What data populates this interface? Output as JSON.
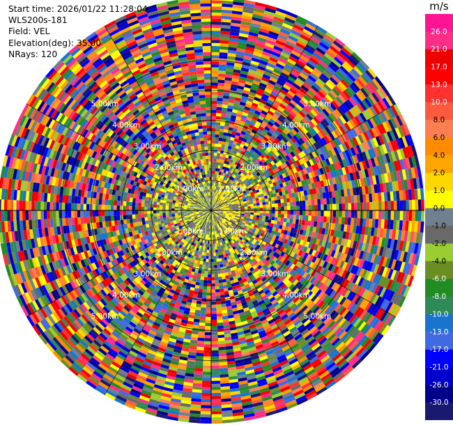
{
  "header": {
    "start_time": "Start time: 2026/01/22 11:28:04",
    "station": "WLS200s-181",
    "field": "Field: VEL",
    "elevation": "Elevation(deg): 35.00",
    "nrays": "NRays: 120"
  },
  "colorbar": {
    "unit": "m/s",
    "ticks": [
      "26.0",
      "21.0",
      "17.0",
      "13.0",
      "10.0",
      "8.0",
      "6.0",
      "4.0",
      "2.0",
      "1.0",
      "0.0",
      "-1.0",
      "-2.0",
      "-4.0",
      "-6.0",
      "-8.0",
      "-10.0",
      "-13.0",
      "-17.0",
      "-21.0",
      "-26.0",
      "-30.0"
    ],
    "colors": [
      "#ff1493",
      "#ff2d87",
      "#ee0000",
      "#ff0000",
      "#ff3030",
      "#ff5a3c",
      "#ff7f50",
      "#ff8c00",
      "#ffa500",
      "#ffd700",
      "#ffff00",
      "#708090",
      "#696969",
      "#9acd32",
      "#6b8e23",
      "#228b22",
      "#2e8b57",
      "#1874cd",
      "#4169e1",
      "#0000ff",
      "#0000cd",
      "#00008b",
      "#191970"
    ]
  },
  "chart_data": {
    "type": "ppi",
    "field": "VEL",
    "units": "m/s",
    "elevation_deg": 35.0,
    "n_rays": 120,
    "range_ring_labels": [
      "1.00km",
      "2.00km",
      "3.00km",
      "4.00km",
      "5.00km"
    ],
    "range_ring_km": [
      1,
      2,
      3,
      4,
      5
    ],
    "max_range_km": 7.1,
    "color_scale": [
      -30,
      -26,
      -21,
      -17,
      -13,
      -10,
      -8,
      -6,
      -4,
      -2,
      -1,
      0,
      1,
      2,
      4,
      6,
      8,
      10,
      13,
      17,
      21,
      26,
      30
    ],
    "pattern": "noise-dominated velocity field; near-range values mostly between -2 and 2 m/s (grey/yellow/green), far range random across full scale"
  }
}
